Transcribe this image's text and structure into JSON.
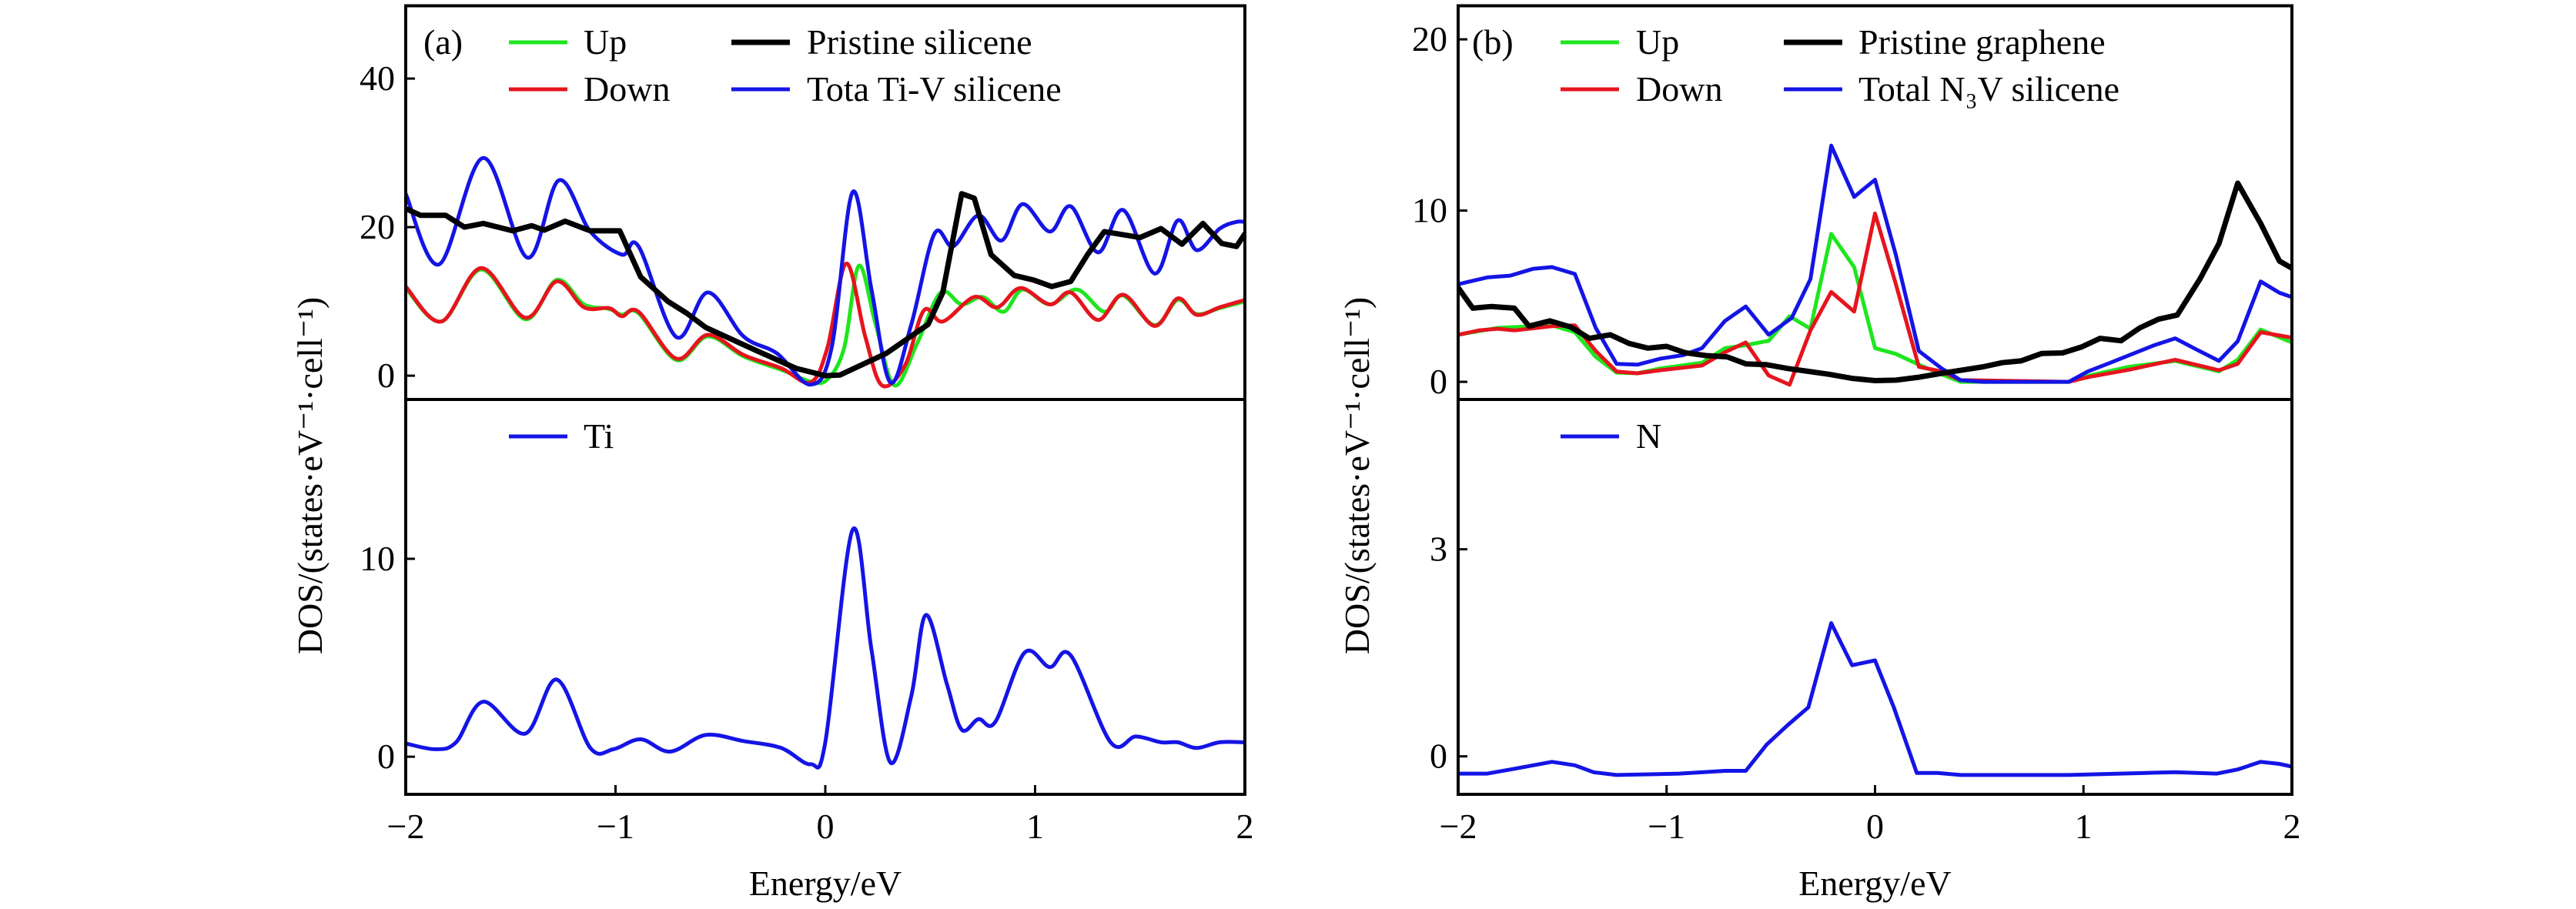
{
  "chart_data": [
    {
      "type": "line",
      "panel_label": "(a)",
      "xlabel": "Energy/eV",
      "ylabel": "DOS/(states·eV⁻¹·cell⁻¹)",
      "xlim": [
        -2,
        2
      ],
      "xticks": [
        -2,
        -1,
        0,
        1,
        2
      ],
      "xtick_labels": [
        "−2",
        "−1",
        "0",
        "1",
        "2"
      ],
      "colors": {
        "up": "#1ee61e",
        "down": "#e6141e",
        "pristine": "#000000",
        "total": "#1414e6"
      },
      "top": {
        "ylim": [
          -3.2,
          49.8
        ],
        "yticks": [
          0,
          20,
          40
        ],
        "ytick_labels": [
          "0",
          "20",
          "40"
        ],
        "smooth": true,
        "series": [
          {
            "name": "Up",
            "key": "up",
            "x": [
              -2,
              -1.83,
              -1.64,
              -1.43,
              -1.28,
              -1.15,
              -1.03,
              -0.97,
              -0.89,
              -0.71,
              -0.56,
              -0.39,
              -0.21,
              -0.07,
              0.01,
              0.09,
              0.16,
              0.24,
              0.33,
              0.44,
              0.55,
              0.65,
              0.75,
              0.85,
              0.94,
              1.07,
              1.2,
              1.33,
              1.42,
              1.57,
              1.68,
              1.77,
              1.88,
              2
            ],
            "y": [
              11.8,
              7.3,
              14.3,
              7.6,
              12.9,
              9.6,
              9.0,
              8.2,
              8.4,
              2.1,
              5.3,
              2.6,
              0.8,
              -0.8,
              -0.5,
              3.75,
              14.8,
              6.9,
              -1.3,
              4.5,
              11.2,
              9.6,
              10.6,
              8.6,
              11.6,
              9.6,
              11.6,
              8.6,
              10.8,
              6.8,
              10.2,
              8.3,
              9.1,
              10.0
            ]
          },
          {
            "name": "Down",
            "key": "down",
            "x": [
              -2,
              -1.83,
              -1.64,
              -1.43,
              -1.28,
              -1.15,
              -1.03,
              -0.97,
              -0.89,
              -0.71,
              -0.56,
              -0.39,
              -0.21,
              -0.07,
              0.01,
              0.1,
              0.19,
              0.27,
              0.38,
              0.47,
              0.56,
              0.71,
              0.82,
              0.93,
              1.07,
              1.17,
              1.3,
              1.42,
              1.57,
              1.68,
              1.77,
              1.88,
              2
            ],
            "y": [
              12,
              7.3,
              14.5,
              7.8,
              12.7,
              9.2,
              9.1,
              8,
              8.6,
              2.3,
              5.5,
              2.8,
              1.0,
              -0.9,
              3.75,
              15.1,
              5.3,
              -1.3,
              1.4,
              8.8,
              7.3,
              10.6,
              9.2,
              11.8,
              9.6,
              11.2,
              7.5,
              10.9,
              6.7,
              10.4,
              8.2,
              9.2,
              10.2
            ]
          },
          {
            "name": "Tota Ti-V silicene",
            "key": "total",
            "x": [
              -2,
              -1.84,
              -1.63,
              -1.42,
              -1.27,
              -1.12,
              -0.97,
              -0.89,
              -0.71,
              -0.56,
              -0.39,
              -0.23,
              -0.07,
              0.03,
              0.13,
              0.22,
              0.31,
              0.41,
              0.52,
              0.61,
              0.73,
              0.84,
              0.94,
              1.07,
              1.17,
              1.3,
              1.42,
              1.57,
              1.68,
              1.77,
              1.88,
              1.96,
              2
            ],
            "y": [
              24.5,
              15,
              29.3,
              15.9,
              26.3,
              19.4,
              16.3,
              17.4,
              5.2,
              11.2,
              5.3,
              3.0,
              -1.2,
              3.75,
              24.7,
              11.6,
              -0.9,
              6.9,
              19.1,
              17.4,
              21.6,
              18.2,
              23.1,
              19.4,
              22.8,
              16.6,
              22.3,
              13.75,
              20.9,
              16.9,
              19.8,
              20.7,
              20.7
            ]
          },
          {
            "name": "Pristine silicene",
            "key": "pristine",
            "polyline": true,
            "x": [
              -2,
              -1.93,
              -1.81,
              -1.72,
              -1.63,
              -1.49,
              -1.4,
              -1.34,
              -1.24,
              -1.12,
              -0.98,
              -0.88,
              -0.75,
              -0.66,
              -0.57,
              -0.33,
              -0.14,
              0,
              0.07,
              0.29,
              0.49,
              0.56,
              0.65,
              0.71,
              0.79,
              0.9,
              0.99,
              1.08,
              1.17,
              1.25,
              1.33,
              1.5,
              1.6,
              1.7,
              1.8,
              1.89,
              1.96,
              2
            ],
            "y": [
              22.5,
              21.6,
              21.6,
              20,
              20.5,
              19.5,
              20.2,
              19.6,
              20.8,
              19.5,
              19.5,
              13.3,
              10,
              8.4,
              6.5,
              3.4,
              1.0,
              0,
              0.1,
              3.0,
              6.9,
              11.2,
              24.5,
              23.9,
              16.3,
              13.5,
              12.9,
              12,
              12.7,
              16.3,
              19.4,
              18.6,
              19.8,
              17.7,
              20.5,
              17.8,
              17.4,
              19.1
            ]
          }
        ],
        "legend": [
          {
            "label": "Up",
            "key": "up",
            "col": 0,
            "row": 0
          },
          {
            "label": "Down",
            "key": "down",
            "col": 0,
            "row": 1
          },
          {
            "label": "Pristine silicene",
            "key": "pristine",
            "col": 1,
            "row": 0
          },
          {
            "label": "Tota Ti-V silicene",
            "key": "total",
            "col": 1,
            "row": 1
          }
        ]
      },
      "bottom": {
        "ylim": [
          -1.9,
          18.05
        ],
        "yticks": [
          0,
          10
        ],
        "ytick_labels": [
          "0",
          "10"
        ],
        "smooth": true,
        "series": [
          {
            "name": "Ti",
            "key": "total",
            "x": [
              -2,
              -1.86,
              -1.76,
              -1.63,
              -1.43,
              -1.28,
              -1.12,
              -1.01,
              -0.88,
              -0.74,
              -0.57,
              -0.39,
              -0.21,
              -0.07,
              0,
              0.13,
              0.22,
              0.31,
              0.41,
              0.48,
              0.58,
              0.65,
              0.73,
              0.81,
              0.95,
              1.07,
              1.17,
              1.36,
              1.48,
              1.6,
              1.68,
              1.77,
              1.88,
              2
            ],
            "y": [
              0.67,
              0.38,
              0.73,
              2.78,
              1.17,
              3.9,
              0.44,
              0.38,
              0.88,
              0.26,
              1.1,
              0.79,
              0.44,
              -0.38,
              0.73,
              11.46,
              5.4,
              -0.29,
              3.07,
              7.16,
              3.65,
              1.37,
              1.9,
              1.75,
              5.26,
              4.53,
              5.12,
              0.73,
              1.02,
              0.73,
              0.73,
              0.44,
              0.73,
              0.73
            ]
          }
        ],
        "legend": [
          {
            "label": "Ti",
            "key": "total",
            "col": 0,
            "row": 0
          }
        ]
      }
    },
    {
      "type": "line",
      "panel_label": "(b)",
      "xlabel": "Energy/eV",
      "ylabel": "DOS/(states·eV⁻¹·cell⁻¹)",
      "xlim": [
        -2,
        2
      ],
      "xticks": [
        -2,
        -1,
        0,
        1,
        2
      ],
      "xtick_labels": [
        "−2",
        "−1",
        "0",
        "1",
        "2"
      ],
      "colors": {
        "up": "#1ee61e",
        "down": "#e6141e",
        "pristine": "#000000",
        "total": "#1414e6"
      },
      "top": {
        "ylim": [
          -1.03,
          21.96
        ],
        "yticks": [
          0,
          10,
          20
        ],
        "ytick_labels": [
          "0",
          "10",
          "20"
        ],
        "smooth": false,
        "series": [
          {
            "name": "Up",
            "key": "up",
            "x": [
              -2,
              -1.81,
              -1.55,
              -1.44,
              -1.34,
              -1.24,
              -1.14,
              -1.03,
              -0.83,
              -0.72,
              -0.62,
              -0.51,
              -0.41,
              -0.31,
              -0.21,
              -0.1,
              0,
              0.1,
              0.21,
              0.32,
              0.41,
              0.93,
              1.02,
              1.22,
              1.44,
              1.65,
              1.74,
              1.85,
              2
            ],
            "y": [
              2.75,
              3.15,
              3.3,
              2.9,
              1.46,
              0.54,
              0.5,
              0.78,
              1.12,
              1.97,
              2.14,
              2.4,
              3.83,
              3.1,
              8.64,
              6.7,
              1.97,
              1.63,
              1.0,
              0.44,
              0,
              0,
              0.34,
              0.88,
              1.22,
              0.61,
              1.29,
              3.05,
              2.3
            ]
          },
          {
            "name": "Down",
            "key": "down",
            "x": [
              -2,
              -1.9,
              -1.81,
              -1.73,
              -1.55,
              -1.44,
              -1.34,
              -1.24,
              -1.14,
              -1.03,
              -0.83,
              -0.72,
              -0.62,
              -0.51,
              -0.41,
              -0.31,
              -0.21,
              -0.1,
              0,
              0.1,
              0.21,
              0.32,
              0.41,
              0.93,
              1.02,
              1.22,
              1.44,
              1.65,
              1.74,
              1.85,
              2
            ],
            "y": [
              2.75,
              3.0,
              3.1,
              3.0,
              3.25,
              3.3,
              1.8,
              0.6,
              0.5,
              0.68,
              0.95,
              1.73,
              2.3,
              0.37,
              -0.17,
              3.0,
              5.25,
              4.1,
              9.83,
              5.7,
              0.88,
              0.6,
              0.1,
              0,
              0.27,
              0.71,
              1.29,
              0.68,
              1.05,
              2.9,
              2.58
            ]
          },
          {
            "name": "Total N₃V silicene",
            "key": "total",
            "x": [
              -2,
              -1.86,
              -1.75,
              -1.64,
              -1.55,
              -1.44,
              -1.34,
              -1.24,
              -1.14,
              -1.03,
              -0.92,
              -0.83,
              -0.72,
              -0.62,
              -0.51,
              -0.4,
              -0.31,
              -0.21,
              -0.1,
              0,
              0.1,
              0.21,
              0.32,
              0.41,
              0.52,
              0.93,
              1.02,
              1.13,
              1.22,
              1.34,
              1.44,
              1.54,
              1.65,
              1.74,
              1.85,
              1.94,
              2
            ],
            "y": [
              5.7,
              6.1,
              6.2,
              6.6,
              6.7,
              6.3,
              3.15,
              1.05,
              1.0,
              1.35,
              1.56,
              1.97,
              3.56,
              4.4,
              2.75,
              3.73,
              6.0,
              13.8,
              10.8,
              11.8,
              7.4,
              1.8,
              0.78,
              0.1,
              0,
              0,
              0.6,
              1.12,
              1.56,
              2.14,
              2.54,
              1.9,
              1.22,
              2.37,
              5.86,
              5.2,
              4.95
            ]
          },
          {
            "name": "Pristine graphene",
            "key": "pristine",
            "x": [
              -2,
              -1.93,
              -1.84,
              -1.73,
              -1.66,
              -1.56,
              -1.46,
              -1.37,
              -1.27,
              -1.18,
              -1.09,
              -1.0,
              -0.91,
              -0.81,
              -0.71,
              -0.62,
              -0.52,
              -0.42,
              -0.32,
              -0.22,
              -0.11,
              0,
              0.1,
              0.21,
              0.32,
              0.43,
              0.52,
              0.61,
              0.7,
              0.8,
              0.9,
              0.99,
              1.08,
              1.18,
              1.27,
              1.36,
              1.45,
              1.56,
              1.65,
              1.74,
              1.85,
              1.94,
              2
            ],
            "y": [
              5.5,
              4.3,
              4.4,
              4.3,
              3.25,
              3.56,
              3.2,
              2.54,
              2.75,
              2.24,
              1.97,
              2.07,
              1.7,
              1.53,
              1.46,
              1.05,
              1.0,
              0.78,
              0.61,
              0.44,
              0.2,
              0.07,
              0.1,
              0.27,
              0.5,
              0.71,
              0.88,
              1.12,
              1.22,
              1.66,
              1.69,
              2.03,
              2.54,
              2.4,
              3.15,
              3.66,
              3.9,
              6.03,
              8.07,
              11.6,
              9.25,
              7.05,
              6.64
            ]
          }
        ],
        "legend": [
          {
            "label": "Up",
            "key": "up",
            "col": 0,
            "row": 0
          },
          {
            "label": "Down",
            "key": "down",
            "col": 0,
            "row": 1
          },
          {
            "label": "Pristine graphene",
            "key": "pristine",
            "col": 1,
            "row": 0
          },
          {
            "label": "Total N₃V silicene",
            "key": "total",
            "col": 1,
            "row": 1
          }
        ]
      },
      "bottom": {
        "ylim": [
          -0.55,
          5.17
        ],
        "yticks": [
          0,
          3
        ],
        "ytick_labels": [
          "0",
          "3"
        ],
        "smooth": false,
        "series": [
          {
            "name": "N",
            "key": "total",
            "x": [
              -2,
              -1.86,
              -1.73,
              -1.64,
              -1.55,
              -1.44,
              -1.35,
              -1.24,
              -0.94,
              -0.72,
              -0.62,
              -0.52,
              -0.42,
              -0.32,
              -0.21,
              -0.11,
              0,
              0.09,
              0.2,
              0.3,
              0.41,
              0.93,
              1.3,
              1.44,
              1.64,
              1.74,
              1.85,
              1.94,
              2
            ],
            "y": [
              -0.25,
              -0.25,
              -0.18,
              -0.13,
              -0.08,
              -0.13,
              -0.23,
              -0.27,
              -0.25,
              -0.21,
              -0.21,
              0.17,
              0.45,
              0.71,
              1.93,
              1.32,
              1.39,
              0.71,
              -0.24,
              -0.24,
              -0.27,
              -0.27,
              -0.24,
              -0.23,
              -0.25,
              -0.19,
              -0.08,
              -0.11,
              -0.15
            ]
          }
        ],
        "legend": [
          {
            "label": "N",
            "key": "total",
            "col": 0,
            "row": 0
          }
        ]
      }
    }
  ]
}
